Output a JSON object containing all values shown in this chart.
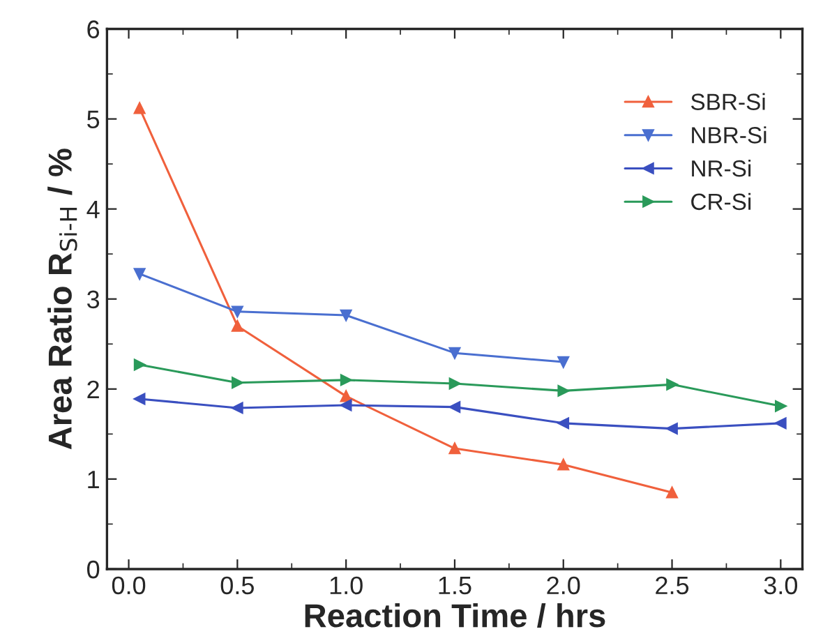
{
  "chart_data": {
    "type": "line",
    "xlabel": "Reaction Time / hrs",
    "ylabel": "Area Ratio R$_{Si-H}$ / %",
    "x": [
      0.05,
      0.5,
      1.0,
      1.5,
      2.0,
      2.5,
      3.0
    ],
    "series": [
      {
        "name": "SBR-Si",
        "color": "#f0603c",
        "marker": "triangle",
        "values": [
          5.12,
          2.7,
          1.92,
          1.34,
          1.16,
          0.85,
          null
        ]
      },
      {
        "name": "NBR-Si",
        "color": "#4a6fd0",
        "marker": "triangle_down",
        "values": [
          3.28,
          2.86,
          2.82,
          2.4,
          2.3,
          null,
          null
        ]
      },
      {
        "name": "NR-Si",
        "color": "#3a4fc0",
        "marker": "triangle_left",
        "values": [
          1.89,
          1.79,
          1.82,
          1.8,
          1.62,
          1.56,
          1.62
        ]
      },
      {
        "name": "CR-Si",
        "color": "#2a9a5a",
        "marker": "triangle_right",
        "values": [
          2.27,
          2.07,
          2.1,
          2.06,
          1.98,
          2.05,
          1.81
        ]
      }
    ],
    "xlim": [
      -0.1,
      3.1
    ],
    "ylim": [
      0,
      6
    ],
    "xticks": [
      {
        "value": 0,
        "label": "0.0"
      },
      0.5,
      {
        "value": 1,
        "label": "1.0"
      },
      1.5,
      {
        "value": 2,
        "label": "2.0"
      },
      2.5,
      {
        "value": 3,
        "label": "3.0"
      }
    ],
    "yticks": [
      0,
      1,
      2,
      3,
      4,
      5,
      6
    ],
    "grid": false,
    "legend": "top right",
    "line_style": "solid"
  }
}
